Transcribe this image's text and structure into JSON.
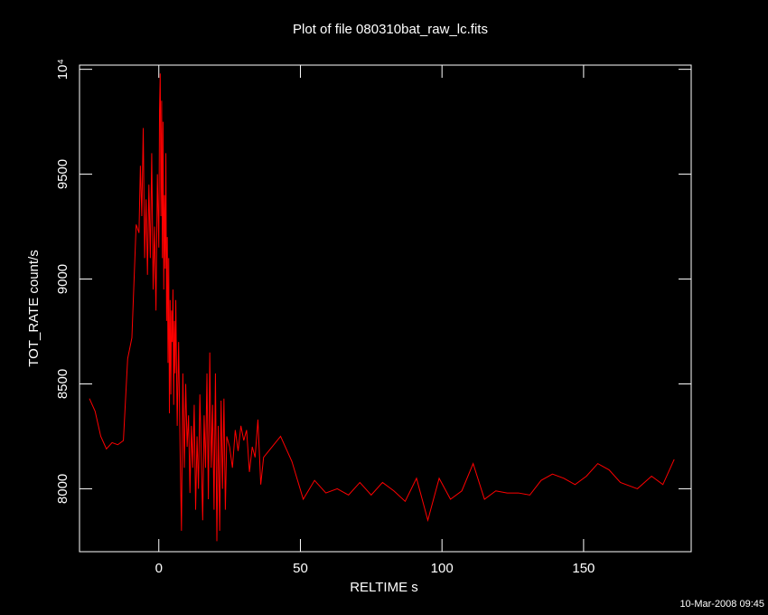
{
  "chart_data": {
    "type": "line",
    "title": "Plot of file 080310bat_raw_lc.fits",
    "xlabel": "RELTIME  s",
    "ylabel": "TOT_RATE  count/s",
    "footer": "10-Mar-2008 09:45",
    "xlim": [
      -28,
      188
    ],
    "ylim": [
      7700,
      10020
    ],
    "xticks": [
      0,
      50,
      100,
      150
    ],
    "yticks": [
      8000,
      8500,
      9000,
      9500,
      {
        "value": 10000,
        "label": "10⁴"
      }
    ],
    "x": [
      -24.5,
      -22.5,
      -20.5,
      -18.5,
      -16.5,
      -14.5,
      -12.5,
      -11,
      -9.5,
      -8,
      -7,
      -6.5,
      -6,
      -5.5,
      -5,
      -4.5,
      -4,
      -3.5,
      -3,
      -2.5,
      -2,
      -1.5,
      -1,
      -0.5,
      0,
      0.25,
      0.5,
      0.75,
      1,
      1.25,
      1.5,
      1.75,
      2,
      2.25,
      2.5,
      2.75,
      3,
      3.25,
      3.5,
      3.75,
      4,
      4.25,
      4.5,
      4.75,
      5,
      5.25,
      5.5,
      5.75,
      6,
      6.5,
      7,
      7.5,
      8,
      8.5,
      9,
      9.5,
      10,
      10.5,
      11,
      11.5,
      12,
      12.5,
      13,
      13.5,
      14,
      14.5,
      15,
      15.5,
      16,
      16.5,
      17,
      17.5,
      18,
      18.5,
      19,
      19.5,
      20,
      20.5,
      21,
      21.5,
      22,
      22.5,
      23,
      23.5,
      24,
      25,
      26,
      27,
      28,
      29,
      30,
      31,
      32,
      33,
      34,
      35,
      36,
      37,
      40,
      43,
      47,
      51,
      55,
      59,
      63,
      67,
      71,
      75,
      79,
      83,
      87,
      91,
      95,
      99,
      103,
      107,
      111,
      115,
      119,
      123,
      127,
      131,
      135,
      139,
      143,
      147,
      151,
      155,
      159,
      163,
      169,
      174,
      178,
      182
    ],
    "series": [
      {
        "name": "TOT_RATE",
        "color": "#ff0000",
        "values": [
          8430,
          8370,
          8250,
          8190,
          8220,
          8210,
          8230,
          8620,
          8720,
          9260,
          9220,
          9540,
          9300,
          9720,
          9100,
          9380,
          9020,
          9450,
          9100,
          9600,
          8950,
          9250,
          8850,
          9500,
          9150,
          9800,
          9980,
          9300,
          9850,
          9100,
          9750,
          8950,
          9400,
          9050,
          9600,
          8800,
          9200,
          8600,
          9100,
          8360,
          8900,
          8450,
          8850,
          8700,
          8950,
          8400,
          8800,
          8550,
          8900,
          8300,
          8700,
          8200,
          7800,
          8550,
          8100,
          8500,
          8200,
          8350,
          7980,
          8300,
          8100,
          8400,
          7900,
          8250,
          8000,
          8450,
          8150,
          7850,
          8350,
          8100,
          8550,
          7950,
          8650,
          8100,
          8400,
          7900,
          8550,
          7750,
          8300,
          7800,
          8420,
          8000,
          8430,
          7900,
          8250,
          8200,
          8100,
          8280,
          8180,
          8300,
          8230,
          8280,
          8080,
          8200,
          8150,
          8330,
          8020,
          8150,
          8200,
          8250,
          8130,
          7950,
          8040,
          7980,
          8000,
          7970,
          8030,
          7970,
          8030,
          7990,
          7940,
          8050,
          7850,
          8050,
          7950,
          7990,
          8120,
          7950,
          7990,
          7980,
          7980,
          7970,
          8040,
          8070,
          8050,
          8020,
          8060,
          8120,
          8090,
          8030,
          8000,
          8060,
          8020,
          8140
        ]
      }
    ]
  }
}
